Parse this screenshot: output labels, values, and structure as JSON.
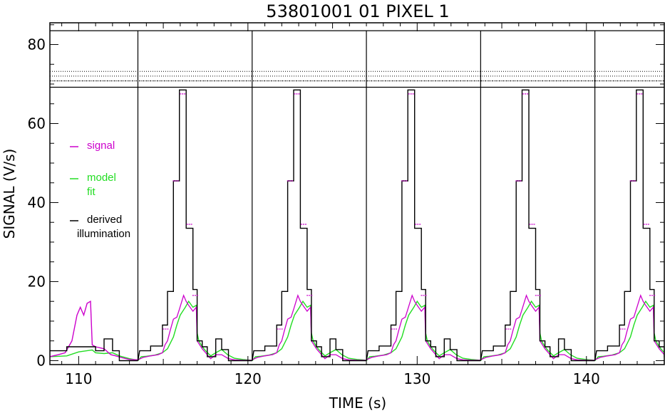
{
  "chart_data": {
    "type": "line",
    "title": "53801001 01 PIXEL 1",
    "xlabel": "TIME (s)",
    "ylabel": "SIGNAL (V/s)",
    "xlim": [
      108.3,
      144.6
    ],
    "ylim": [
      -1,
      85.5
    ],
    "xticks": [
      110,
      120,
      130,
      140
    ],
    "yticks": [
      0,
      20,
      40,
      60,
      80
    ],
    "grid": false,
    "legend_placement": "left-inside",
    "colors": {
      "signal": "#cc00cc",
      "model": "#22dd22",
      "illumination": "#000000",
      "axes": "#000000"
    },
    "legend": [
      {
        "key": "signal",
        "lines": [
          "signal"
        ],
        "color": "#cc00cc"
      },
      {
        "key": "model",
        "lines": [
          "model",
          "fit"
        ],
        "color": "#22dd22"
      },
      {
        "key": "illumination",
        "lines": [
          "derived",
          "illumination"
        ],
        "color": "#000000"
      }
    ],
    "cycle_boundaries": [
      113.5,
      120.25,
      127.0,
      133.75,
      140.5
    ],
    "reference_levels": {
      "upper": 83.5,
      "band_top": 73.2,
      "band_mid": 72.0,
      "band_low": 70.8,
      "lower": 69.2
    },
    "illumination_pre_cycle": [
      [
        108.3,
        2.5
      ],
      [
        109.3,
        2.5
      ],
      [
        109.3,
        3.5
      ],
      [
        111.0,
        3.5
      ],
      [
        111.0,
        2.5
      ],
      [
        111.5,
        2.5
      ],
      [
        111.5,
        5.5
      ],
      [
        112.0,
        5.5
      ],
      [
        112.0,
        2.5
      ],
      [
        112.4,
        2.5
      ],
      [
        112.4,
        0
      ],
      [
        113.5,
        0
      ]
    ],
    "illumination_cycle": [
      [
        0.0,
        0
      ],
      [
        0.1,
        2.5
      ],
      [
        0.75,
        2.5
      ],
      [
        0.75,
        3.7
      ],
      [
        1.45,
        3.7
      ],
      [
        1.45,
        9.0
      ],
      [
        1.75,
        9.0
      ],
      [
        1.75,
        17.5
      ],
      [
        2.1,
        17.5
      ],
      [
        2.1,
        45.5
      ],
      [
        2.45,
        45.5
      ],
      [
        2.45,
        68.5
      ],
      [
        2.85,
        68.5
      ],
      [
        2.85,
        33.5
      ],
      [
        3.25,
        33.5
      ],
      [
        3.25,
        18.0
      ],
      [
        3.5,
        18.0
      ],
      [
        3.5,
        5.0
      ],
      [
        3.8,
        5.0
      ],
      [
        3.8,
        3.5
      ],
      [
        4.1,
        3.5
      ],
      [
        4.1,
        1.0
      ],
      [
        4.6,
        1.0
      ],
      [
        4.6,
        5.5
      ],
      [
        4.95,
        5.5
      ],
      [
        4.95,
        2.8
      ],
      [
        5.35,
        2.8
      ],
      [
        5.35,
        0
      ],
      [
        6.75,
        0
      ]
    ],
    "model_cycle": [
      [
        0.0,
        0
      ],
      [
        0.2,
        1.0
      ],
      [
        0.5,
        1.1
      ],
      [
        1.0,
        1.4
      ],
      [
        1.45,
        2.0
      ],
      [
        1.75,
        3.0
      ],
      [
        2.1,
        6.0
      ],
      [
        2.3,
        9.0
      ],
      [
        2.5,
        11.5
      ],
      [
        2.8,
        13.5
      ],
      [
        3.0,
        15.0
      ],
      [
        3.25,
        13.5
      ],
      [
        3.45,
        14.0
      ],
      [
        3.5,
        7.0
      ],
      [
        3.6,
        5.0
      ],
      [
        3.8,
        3.5
      ],
      [
        4.0,
        2.5
      ],
      [
        4.3,
        1.2
      ],
      [
        4.6,
        2.0
      ],
      [
        4.95,
        2.8
      ],
      [
        5.3,
        1.5
      ],
      [
        5.7,
        0.6
      ],
      [
        6.2,
        0.3
      ],
      [
        6.75,
        0.1
      ]
    ],
    "signal_cycle": [
      [
        0.0,
        0.2
      ],
      [
        0.3,
        0.8
      ],
      [
        0.75,
        1.2
      ],
      [
        1.2,
        1.5
      ],
      [
        1.45,
        2.0
      ],
      [
        1.6,
        4.0
      ],
      [
        1.75,
        5.0
      ],
      [
        1.9,
        7.5
      ],
      [
        2.1,
        10.5
      ],
      [
        2.3,
        11.0
      ],
      [
        2.45,
        13.0
      ],
      [
        2.7,
        16.5
      ],
      [
        2.85,
        15.0
      ],
      [
        3.0,
        14.0
      ],
      [
        3.25,
        12.5
      ],
      [
        3.45,
        13.5
      ],
      [
        3.5,
        5.0
      ],
      [
        3.8,
        3.0
      ],
      [
        4.1,
        1.5
      ],
      [
        4.3,
        0.5
      ],
      [
        4.6,
        1.5
      ],
      [
        4.95,
        1.5
      ],
      [
        5.35,
        0.5
      ],
      [
        5.7,
        0.2
      ],
      [
        6.2,
        0.1
      ],
      [
        6.75,
        0.1
      ]
    ],
    "signal_pre_cycle": [
      [
        108.3,
        1.0
      ],
      [
        108.8,
        1.5
      ],
      [
        109.2,
        2.0
      ],
      [
        109.6,
        5.0
      ],
      [
        109.9,
        11.5
      ],
      [
        110.1,
        13.5
      ],
      [
        110.3,
        11.5
      ],
      [
        110.5,
        14.5
      ],
      [
        110.7,
        15.0
      ],
      [
        110.8,
        4.0
      ],
      [
        111.0,
        3.5
      ],
      [
        111.5,
        3.0
      ],
      [
        111.9,
        1.5
      ],
      [
        112.2,
        1.2
      ],
      [
        112.5,
        0.8
      ],
      [
        113.0,
        0.3
      ],
      [
        113.5,
        0.2
      ]
    ],
    "model_pre_cycle": [
      [
        108.3,
        1.0
      ],
      [
        109.3,
        1.2
      ],
      [
        110.0,
        2.2
      ],
      [
        110.8,
        2.7
      ],
      [
        111.0,
        2.0
      ],
      [
        111.5,
        1.8
      ],
      [
        112.0,
        2.0
      ],
      [
        112.4,
        1.2
      ],
      [
        113.0,
        0.5
      ],
      [
        113.5,
        0.1
      ]
    ],
    "signal_dashes_cycle": [
      [
        2.25,
        45.5
      ],
      [
        2.65,
        67.5
      ],
      [
        3.05,
        34.5
      ],
      [
        3.4,
        16.5
      ],
      [
        1.65,
        8.0
      ]
    ]
  }
}
